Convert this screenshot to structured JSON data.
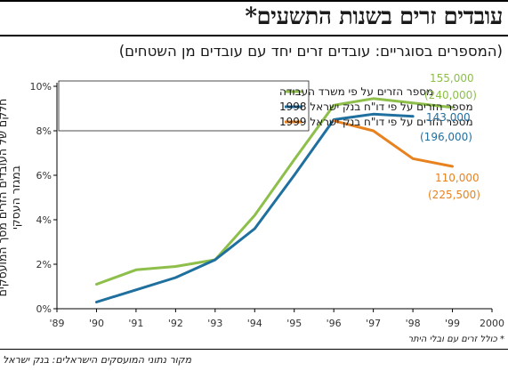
{
  "chart_data": {
    "type": "line",
    "title": "עובדים זרים בשנות התשעים*",
    "subtitle": "(המספרים בסוגריים: עובדים זרים יחד עם עובדים מן השטחים)",
    "ylabel": "חלקם של העובדים הזרים מסך המועסקים במגזר העסקי",
    "x_ticks": [
      "'89",
      "'90",
      "'91",
      "'92",
      "'93",
      "'94",
      "'95",
      "'96",
      "'97",
      "'98",
      "'99",
      "2000"
    ],
    "y_ticks": [
      "0%",
      "2%",
      "4%",
      "6%",
      "8%",
      "10%"
    ],
    "ylim": [
      0,
      10
    ],
    "xlim": [
      1989,
      2000
    ],
    "grid": false,
    "legend_position": "top-left",
    "series": [
      {
        "name": "מספר הזרים על פי משרד העבודה",
        "color": "#8dbf4a",
        "x": [
          1990,
          1991,
          1992,
          1993,
          1994,
          1995,
          1996,
          1997,
          1998,
          1999
        ],
        "y": [
          1.1,
          1.75,
          1.9,
          2.2,
          4.2,
          6.7,
          9.15,
          9.45,
          9.25,
          9.05
        ]
      },
      {
        "name": "מספר הזרים על פי דו\"ח בנק ישראל 1998",
        "color": "#1f6f9f",
        "x": [
          1990,
          1991,
          1992,
          1993,
          1994,
          1995,
          1996,
          1997,
          1998
        ],
        "y": [
          0.3,
          0.85,
          1.4,
          2.2,
          3.6,
          6.0,
          8.5,
          8.75,
          8.65
        ]
      },
      {
        "name": "מספר הזרים על פי דו\"ח בנק ישראל 1999",
        "color": "#e8821e",
        "x": [
          1996,
          1997,
          1998,
          1999
        ],
        "y": [
          8.45,
          8.0,
          6.75,
          6.4
        ]
      }
    ],
    "annotations": [
      {
        "text": "155,000",
        "color": "#8dbf4a"
      },
      {
        "text": "(240,000)",
        "color": "#8dbf4a"
      },
      {
        "text": "143,000",
        "color": "#1f6f9f"
      },
      {
        "text": "(196,000)",
        "color": "#1f6f9f"
      },
      {
        "text": "110,000",
        "color": "#e8821e"
      },
      {
        "text": "(225,500)",
        "color": "#e8821e"
      }
    ]
  },
  "footnote": "* כולל זרים עם ובלי היתר",
  "source": "מקור נתוני המועסקים הישראלים: בנק ישראל"
}
